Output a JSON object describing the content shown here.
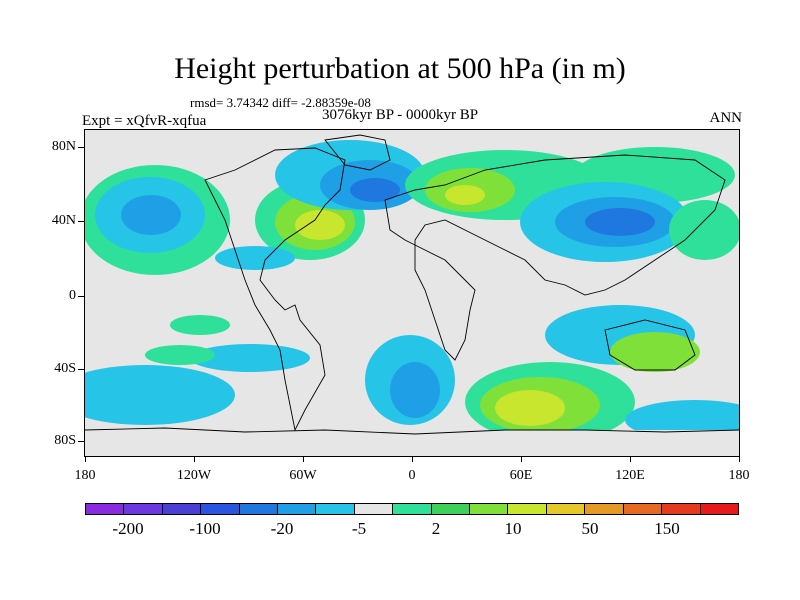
{
  "title": "Height perturbation at 500 hPa (in m)",
  "stats": "rmsd= 3.74342 diff= -2.88359e-08",
  "experiment": "Expt = xQfvR-xqfua",
  "period": "3076kyr BP - 0000kyr BP",
  "season": "ANN",
  "lat_labels": [
    "80N",
    "40N",
    "0",
    "40S",
    "80S"
  ],
  "lon_labels": [
    "180",
    "120W",
    "60W",
    "0",
    "60E",
    "120E",
    "180"
  ],
  "colorbar": {
    "colors": [
      "#8a2be2",
      "#6a3ae0",
      "#4b3fd6",
      "#2b55e0",
      "#1f78e0",
      "#1fa0e6",
      "#26c4e6",
      "#e6e6e6",
      "#2ee09a",
      "#3dd15a",
      "#7fe03a",
      "#c8e62e",
      "#e6c829",
      "#e69a26",
      "#e66a22",
      "#e63a1f",
      "#e61a1a"
    ],
    "labels": [
      "-200",
      "-100",
      "-20",
      "-5",
      "2",
      "10",
      "50",
      "150"
    ]
  },
  "map": {
    "type": "filled-contour",
    "field": "500 hPa height perturbation",
    "lon_range": [
      -180,
      180
    ],
    "lat_range": [
      -90,
      90
    ]
  }
}
